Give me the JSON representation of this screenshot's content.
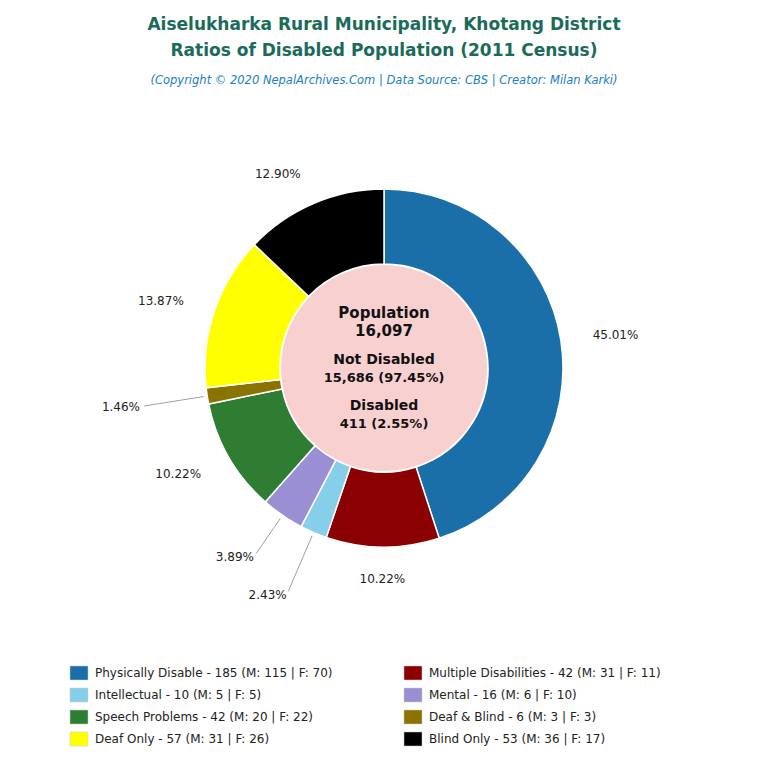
{
  "chart_data": {
    "type": "pie",
    "title": [
      "Aiselukharka Rural Municipality, Khotang District",
      "Ratios of Disabled Population (2011 Census)"
    ],
    "subtitle": "(Copyright © 2020 NepalArchives.Com | Data Source: CBS | Creator: Milan Karki)",
    "categories": [
      "Physically Disable - 185 (M: 115 | F: 70)",
      "Multiple Disabilities - 42 (M: 31 | F: 11)",
      "Intellectual - 10 (M: 5 | F: 5)",
      "Mental - 16 (M: 6 | F: 10)",
      "Speech Problems - 42 (M: 20 | F: 22)",
      "Deaf & Blind - 6 (M: 3 | F: 3)",
      "Deaf Only - 57 (M: 31 | F: 26)",
      "Blind Only - 53 (M: 36 | F: 17)"
    ],
    "values": [
      45.01,
      10.22,
      2.43,
      3.89,
      10.22,
      1.46,
      13.87,
      12.9
    ],
    "value_labels": [
      "45.01%",
      "10.22%",
      "2.43%",
      "3.89%",
      "10.22%",
      "1.46%",
      "13.87%",
      "12.90%"
    ],
    "colors": [
      "#1a6fa8",
      "#8b0000",
      "#87ceeb",
      "#9b8fd4",
      "#2e7d32",
      "#8b7300",
      "#ffff00",
      "#000000"
    ],
    "data_labels": true,
    "legend": "bottom",
    "annotations": [
      "Population",
      "16,097",
      "Not Disabled",
      "15,686 (97.45%)",
      "Disabled",
      "411 (2.55%)"
    ]
  }
}
